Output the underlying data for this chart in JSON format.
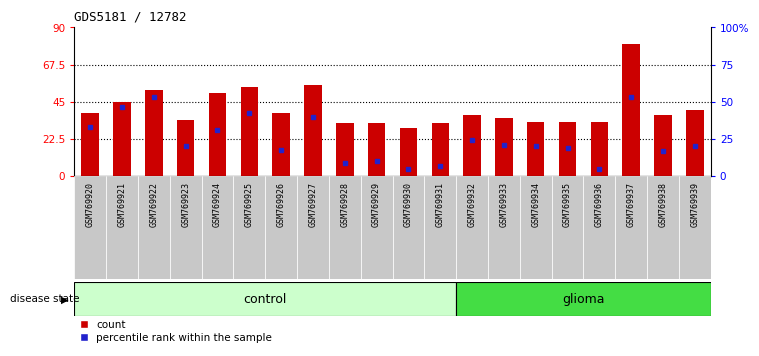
{
  "title": "GDS5181 / 12782",
  "samples": [
    "GSM769920",
    "GSM769921",
    "GSM769922",
    "GSM769923",
    "GSM769924",
    "GSM769925",
    "GSM769926",
    "GSM769927",
    "GSM769928",
    "GSM769929",
    "GSM769930",
    "GSM769931",
    "GSM769932",
    "GSM769933",
    "GSM769934",
    "GSM769935",
    "GSM769936",
    "GSM769937",
    "GSM769938",
    "GSM769939"
  ],
  "bar_heights": [
    38,
    45,
    52,
    34,
    50,
    54,
    38,
    55,
    32,
    32,
    29,
    32,
    37,
    35,
    33,
    33,
    33,
    80,
    37,
    40
  ],
  "blue_dot_positions": [
    30,
    42,
    48,
    18,
    28,
    38,
    16,
    36,
    8,
    9,
    4,
    6,
    22,
    19,
    18,
    17,
    4,
    48,
    15,
    18
  ],
  "bar_color": "#cc0000",
  "dot_color": "#2222cc",
  "ylim_left": [
    0,
    90
  ],
  "ylim_right": [
    0,
    100
  ],
  "yticks_left": [
    0,
    22.5,
    45,
    67.5,
    90
  ],
  "ytick_labels_left": [
    "0",
    "22.5",
    "45",
    "67.5",
    "90"
  ],
  "yticks_right": [
    0,
    25,
    50,
    75,
    100
  ],
  "ytick_labels_right": [
    "0",
    "25",
    "50",
    "75",
    "100%"
  ],
  "n_control": 12,
  "n_glioma": 8,
  "control_label": "control",
  "glioma_label": "glioma",
  "disease_state_label": "disease state",
  "legend_count": "count",
  "legend_percentile": "percentile rank within the sample",
  "control_bg": "#ccffcc",
  "glioma_bg": "#44dd44",
  "cell_bg": "#c8c8c8",
  "bar_width": 0.55,
  "grid_lines": [
    22.5,
    45,
    67.5
  ]
}
